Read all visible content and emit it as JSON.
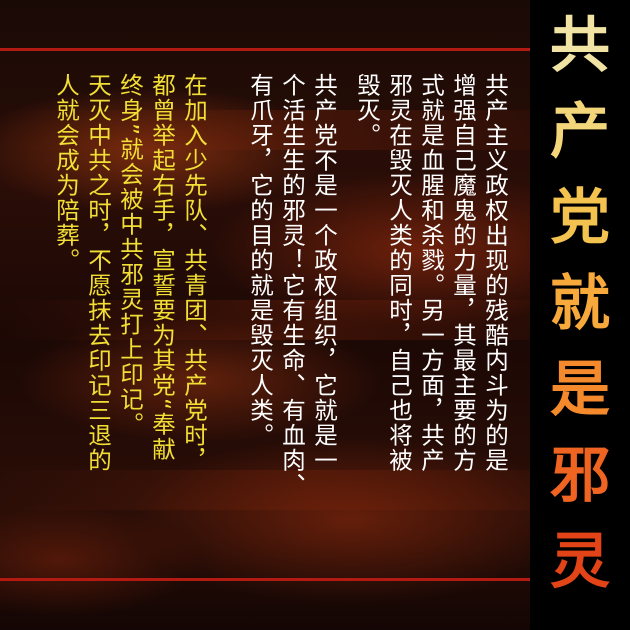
{
  "title": {
    "chars": [
      "共",
      "产",
      "党",
      "就",
      "是",
      "邪",
      "灵"
    ],
    "colors": [
      "#f1e3a4",
      "#f3d57a",
      "#f4c24f",
      "#f7a93c",
      "#f58a2c",
      "#ee6420",
      "#e24418"
    ]
  },
  "paragraphs": [
    {
      "id": "p1",
      "color": "#ffffff",
      "lines": [
        "共产主义政权出现的残酷内斗为的是",
        "增强自己魔鬼的力量，其最主要的方",
        "式就是血腥和杀戮。另一方面，共产",
        "邪灵在毁灭人类的同时，自己也将被",
        "毁灭。"
      ]
    },
    {
      "id": "p2",
      "color": "#ffffff",
      "lines": [
        "共产党不是一个政权组织，它就是一",
        "个活生生的邪灵！它有生命、有血肉、",
        "有爪牙，它的目的就是毁灭人类。"
      ]
    },
    {
      "id": "p3",
      "color": "#f2df35",
      "lines": [
        "在加入少先队、共青团、共产党时，",
        "都曾举起右手，宣誓要为其党“奉献",
        "终身”就会被中共邪灵打上印记。",
        "天灭中共之时，不愿抹去印记三退的",
        "人就会成为陪葬。"
      ]
    }
  ]
}
